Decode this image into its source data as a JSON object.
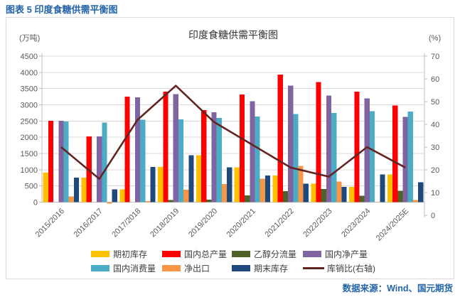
{
  "page": {
    "caption": "图表 5 印度食糖供需平衡图",
    "source": "数据来源：Wind、国元期货"
  },
  "chart_data": {
    "type": "bar",
    "subtype": "grouped-bar-with-line",
    "title": "印度食糖供需平衡图",
    "left_axis": {
      "unit": "(万吨)",
      "min": 0,
      "max": 4500,
      "step": 500
    },
    "right_axis": {
      "unit": "(%)",
      "min": 0,
      "max": 70,
      "step": 10
    },
    "grid": true,
    "legend_position": "bottom",
    "categories": [
      "2015/2016",
      "2016/2017",
      "2017/2018",
      "2018/2019",
      "2019/2020",
      "2020/2021",
      "2021/2022",
      "2022/2023",
      "2023/2024",
      "2024/2025E"
    ],
    "series": [
      {
        "name": "期初库存",
        "type": "bar",
        "axis": "left",
        "color": "#FFC000",
        "values": [
          910,
          760,
          390,
          1080,
          1450,
          1070,
          820,
          570,
          470,
          850
        ]
      },
      {
        "name": "国内总产量",
        "type": "bar",
        "axis": "left",
        "color": "#FF0000",
        "values": [
          2510,
          2030,
          3250,
          3400,
          2840,
          3320,
          3930,
          3700,
          3400,
          2980
        ]
      },
      {
        "name": "乙醇分流量",
        "type": "bar",
        "axis": "left",
        "color": "#4F6228",
        "values": [
          0,
          0,
          0,
          70,
          80,
          210,
          340,
          410,
          200,
          350
        ]
      },
      {
        "name": "国内净产量",
        "type": "bar",
        "axis": "left",
        "color": "#8064A2",
        "values": [
          2510,
          2030,
          3230,
          3330,
          2770,
          3110,
          3590,
          3290,
          3200,
          2630
        ]
      },
      {
        "name": "国内消费量",
        "type": "bar",
        "axis": "left",
        "color": "#4BACC6",
        "values": [
          2480,
          2450,
          2540,
          2550,
          2590,
          2640,
          2720,
          2750,
          2800,
          2790
        ]
      },
      {
        "name": "净出口",
        "type": "bar",
        "axis": "left",
        "color": "#F79646",
        "values": [
          180,
          -45,
          30,
          380,
          560,
          720,
          1120,
          640,
          10,
          70
        ]
      },
      {
        "name": "期末库存",
        "type": "bar",
        "axis": "left",
        "color": "#1F497D",
        "values": [
          760,
          390,
          1080,
          1450,
          1070,
          820,
          570,
          470,
          850,
          610
        ]
      },
      {
        "name": "库销比(右轴)",
        "type": "line",
        "axis": "right",
        "color": "#632523",
        "values": [
          30,
          16,
          42,
          57,
          41,
          31,
          21,
          17,
          30,
          21
        ]
      }
    ]
  }
}
